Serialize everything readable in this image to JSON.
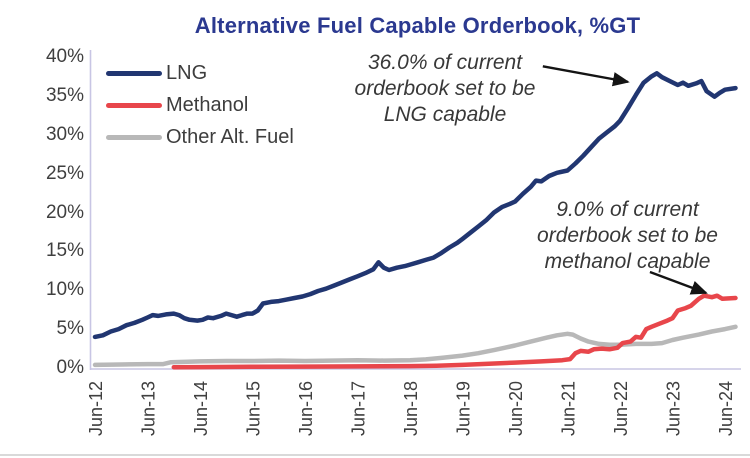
{
  "title": "Alternative Fuel Capable Orderbook, %GT",
  "colors": {
    "title": "#2b3990",
    "axis": "#c8c5e4",
    "tick_text": "#3f3f3f",
    "annotation_text": "#383838",
    "arrow": "#141414",
    "lng": "#213671",
    "methanol": "#e8464b",
    "other_alt_fuel": "#b8b8b8"
  },
  "legend": {
    "items": [
      {
        "label": "LNG",
        "color": "#213671"
      },
      {
        "label": "Methanol",
        "color": "#e8464b"
      },
      {
        "label": "Other Alt. Fuel",
        "color": "#b8b8b8"
      }
    ]
  },
  "annotations": [
    {
      "text": "36.0% of current\norderbook set to be\nLNG capable",
      "arrow": {
        "from": [
          8.53,
          38.8
        ],
        "to": [
          10.15,
          36.8
        ]
      }
    },
    {
      "text": "9.0% of current\norderbook set to be\nmethanol capable",
      "arrow": {
        "from": [
          10.57,
          12.35
        ],
        "to": [
          11.64,
          9.65
        ]
      }
    }
  ],
  "chart_data": {
    "type": "line",
    "title": "Alternative Fuel Capable Orderbook, %GT",
    "xlabel": "",
    "ylabel": "",
    "x_unit": "years since Jun-2012, monthly series",
    "x_ticks": [
      "Jun-12",
      "Jun-13",
      "Jun-14",
      "Jun-15",
      "Jun-16",
      "Jun-17",
      "Jun-18",
      "Jun-19",
      "Jun-20",
      "Jun-21",
      "Jun-22",
      "Jun-23",
      "Jun-24"
    ],
    "y_ticks": [
      40,
      35,
      30,
      25,
      20,
      15,
      10,
      5,
      0
    ],
    "y_tick_suffix": "%",
    "ylim": [
      0,
      40
    ],
    "xlim": [
      0,
      12.3
    ],
    "grid": false,
    "legend_position": "top-left",
    "series": [
      {
        "name": "LNG",
        "color": "#213671",
        "end_value_pct": 36.0,
        "points": [
          [
            0,
            4.0
          ],
          [
            0.15,
            4.2
          ],
          [
            0.3,
            4.7
          ],
          [
            0.45,
            5.0
          ],
          [
            0.6,
            5.5
          ],
          [
            0.75,
            5.8
          ],
          [
            0.9,
            6.2
          ],
          [
            1.0,
            6.5
          ],
          [
            1.1,
            6.8
          ],
          [
            1.2,
            6.7
          ],
          [
            1.35,
            6.9
          ],
          [
            1.5,
            7.0
          ],
          [
            1.6,
            6.8
          ],
          [
            1.7,
            6.4
          ],
          [
            1.8,
            6.2
          ],
          [
            1.95,
            6.1
          ],
          [
            2.05,
            6.2
          ],
          [
            2.15,
            6.5
          ],
          [
            2.25,
            6.4
          ],
          [
            2.4,
            6.7
          ],
          [
            2.5,
            7.0
          ],
          [
            2.6,
            6.8
          ],
          [
            2.7,
            6.6
          ],
          [
            2.8,
            6.8
          ],
          [
            2.9,
            7.0
          ],
          [
            3.0,
            7.0
          ],
          [
            3.1,
            7.4
          ],
          [
            3.2,
            8.3
          ],
          [
            3.35,
            8.5
          ],
          [
            3.5,
            8.6
          ],
          [
            3.65,
            8.8
          ],
          [
            3.8,
            9.0
          ],
          [
            3.95,
            9.2
          ],
          [
            4.1,
            9.5
          ],
          [
            4.25,
            9.9
          ],
          [
            4.4,
            10.2
          ],
          [
            4.55,
            10.6
          ],
          [
            4.7,
            11.0
          ],
          [
            4.85,
            11.4
          ],
          [
            5.0,
            11.8
          ],
          [
            5.15,
            12.2
          ],
          [
            5.3,
            12.7
          ],
          [
            5.4,
            13.6
          ],
          [
            5.5,
            12.9
          ],
          [
            5.6,
            12.6
          ],
          [
            5.75,
            12.9
          ],
          [
            5.9,
            13.1
          ],
          [
            6.0,
            13.3
          ],
          [
            6.15,
            13.6
          ],
          [
            6.3,
            13.9
          ],
          [
            6.45,
            14.2
          ],
          [
            6.6,
            14.8
          ],
          [
            6.75,
            15.5
          ],
          [
            6.9,
            16.1
          ],
          [
            7.0,
            16.6
          ],
          [
            7.15,
            17.4
          ],
          [
            7.3,
            18.2
          ],
          [
            7.45,
            19.0
          ],
          [
            7.6,
            20.0
          ],
          [
            7.75,
            20.7
          ],
          [
            7.9,
            21.1
          ],
          [
            8.0,
            21.4
          ],
          [
            8.15,
            22.4
          ],
          [
            8.3,
            23.3
          ],
          [
            8.4,
            24.1
          ],
          [
            8.5,
            24.0
          ],
          [
            8.65,
            24.7
          ],
          [
            8.8,
            25.1
          ],
          [
            9.0,
            25.4
          ],
          [
            9.15,
            26.3
          ],
          [
            9.3,
            27.3
          ],
          [
            9.45,
            28.4
          ],
          [
            9.6,
            29.5
          ],
          [
            9.75,
            30.3
          ],
          [
            9.9,
            31.1
          ],
          [
            10.0,
            31.8
          ],
          [
            10.15,
            33.4
          ],
          [
            10.3,
            35.1
          ],
          [
            10.45,
            36.7
          ],
          [
            10.6,
            37.5
          ],
          [
            10.7,
            37.9
          ],
          [
            10.8,
            37.4
          ],
          [
            10.95,
            36.9
          ],
          [
            11.1,
            36.4
          ],
          [
            11.2,
            36.7
          ],
          [
            11.3,
            36.3
          ],
          [
            11.45,
            36.6
          ],
          [
            11.55,
            36.9
          ],
          [
            11.65,
            35.6
          ],
          [
            11.8,
            34.9
          ],
          [
            11.9,
            35.4
          ],
          [
            12.0,
            35.8
          ],
          [
            12.2,
            36.0
          ]
        ]
      },
      {
        "name": "Methanol",
        "color": "#e8464b",
        "end_value_pct": 9.0,
        "points": [
          [
            1.5,
            0.1
          ],
          [
            2.0,
            0.12
          ],
          [
            3.0,
            0.15
          ],
          [
            4.0,
            0.18
          ],
          [
            5.0,
            0.2
          ],
          [
            6.0,
            0.25
          ],
          [
            6.5,
            0.3
          ],
          [
            7.0,
            0.4
          ],
          [
            7.5,
            0.55
          ],
          [
            8.0,
            0.7
          ],
          [
            8.5,
            0.85
          ],
          [
            8.9,
            1.0
          ],
          [
            9.05,
            1.15
          ],
          [
            9.15,
            1.9
          ],
          [
            9.25,
            2.2
          ],
          [
            9.4,
            2.1
          ],
          [
            9.5,
            2.4
          ],
          [
            9.65,
            2.5
          ],
          [
            9.8,
            2.4
          ],
          [
            9.95,
            2.6
          ],
          [
            10.05,
            3.2
          ],
          [
            10.2,
            3.4
          ],
          [
            10.3,
            4.0
          ],
          [
            10.4,
            3.9
          ],
          [
            10.5,
            5.0
          ],
          [
            10.6,
            5.3
          ],
          [
            10.75,
            5.7
          ],
          [
            10.9,
            6.1
          ],
          [
            11.0,
            6.4
          ],
          [
            11.1,
            7.4
          ],
          [
            11.25,
            7.7
          ],
          [
            11.35,
            8.0
          ],
          [
            11.5,
            8.9
          ],
          [
            11.6,
            9.3
          ],
          [
            11.75,
            9.1
          ],
          [
            11.85,
            9.3
          ],
          [
            11.95,
            8.9
          ],
          [
            12.2,
            9.0
          ]
        ]
      },
      {
        "name": "Other Alt. Fuel",
        "color": "#b8b8b8",
        "end_value_pct": 5.3,
        "points": [
          [
            0,
            0.4
          ],
          [
            0.5,
            0.45
          ],
          [
            1.0,
            0.5
          ],
          [
            1.3,
            0.5
          ],
          [
            1.45,
            0.75
          ],
          [
            2.0,
            0.85
          ],
          [
            2.5,
            0.9
          ],
          [
            3.0,
            0.9
          ],
          [
            3.5,
            0.95
          ],
          [
            4.0,
            0.9
          ],
          [
            4.5,
            0.95
          ],
          [
            5.0,
            1.0
          ],
          [
            5.5,
            0.95
          ],
          [
            6.0,
            1.0
          ],
          [
            6.3,
            1.1
          ],
          [
            6.6,
            1.3
          ],
          [
            7.0,
            1.6
          ],
          [
            7.3,
            1.9
          ],
          [
            7.6,
            2.3
          ],
          [
            7.8,
            2.6
          ],
          [
            8.0,
            2.9
          ],
          [
            8.3,
            3.4
          ],
          [
            8.6,
            3.9
          ],
          [
            8.8,
            4.2
          ],
          [
            9.0,
            4.4
          ],
          [
            9.1,
            4.3
          ],
          [
            9.25,
            3.8
          ],
          [
            9.4,
            3.4
          ],
          [
            9.6,
            3.1
          ],
          [
            9.8,
            3.0
          ],
          [
            10.0,
            3.0
          ],
          [
            10.3,
            3.1
          ],
          [
            10.6,
            3.1
          ],
          [
            10.8,
            3.2
          ],
          [
            11.0,
            3.6
          ],
          [
            11.2,
            3.9
          ],
          [
            11.5,
            4.3
          ],
          [
            11.75,
            4.7
          ],
          [
            12.0,
            5.0
          ],
          [
            12.2,
            5.3
          ]
        ]
      }
    ]
  }
}
